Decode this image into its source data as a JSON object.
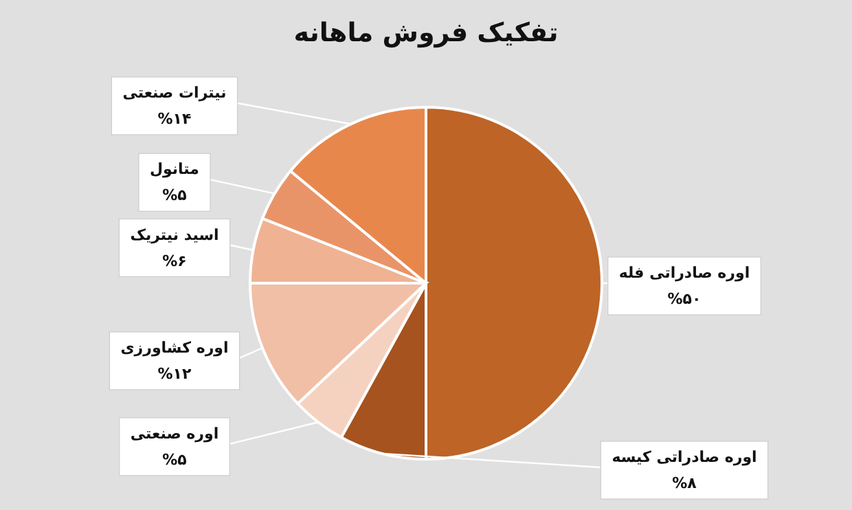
{
  "chart_data": {
    "type": "pie",
    "title": "تفکیک فروش ماهانه",
    "categories": [
      "اوره صادراتی فله",
      "اوره صادراتی کیسه",
      "اوره صنعتی",
      "اوره کشاورزی",
      "اسید نیتریک",
      "متانول",
      "نیترات صنعتی"
    ],
    "values": [
      50,
      8,
      5,
      12,
      6,
      5,
      14
    ],
    "value_labels": [
      "%۵۰",
      "%۸",
      "%۵",
      "%۱۲",
      "%۶",
      "%۵",
      "%۱۴"
    ],
    "colors": [
      "#bd6426",
      "#a6531f",
      "#f5d2c0",
      "#f1bfa6",
      "#efb393",
      "#e99468",
      "#e8874c"
    ]
  }
}
